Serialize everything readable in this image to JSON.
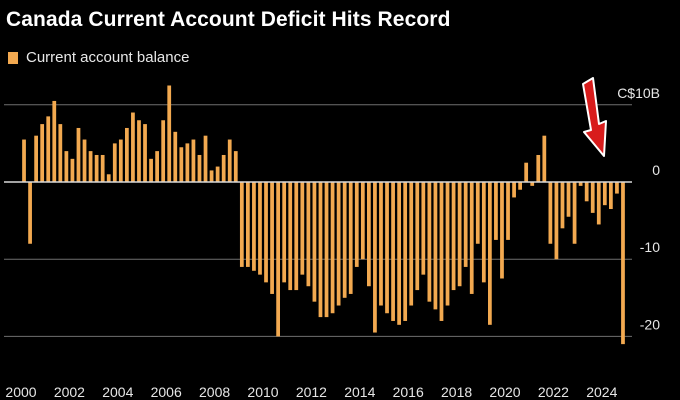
{
  "colors": {
    "accent": "#f2a950",
    "arrow": "#d81c1c",
    "background": "#000000"
  },
  "header": {
    "title": "Canada Current Account Deficit Hits Record"
  },
  "legend": {
    "label": "Current account balance"
  },
  "chart_data": {
    "type": "bar",
    "title": "Canada Current Account Deficit Hits Record",
    "xlabel": "",
    "ylabel": "",
    "ylim": [
      -22,
      12
    ],
    "y_ticks": [
      {
        "value": 10,
        "label": "C$10B"
      },
      {
        "value": 0,
        "label": "0"
      },
      {
        "value": -10,
        "label": "-10"
      },
      {
        "value": -20,
        "label": "-20"
      }
    ],
    "x_tick_labels": [
      "2000",
      "2002",
      "2004",
      "2006",
      "2008",
      "2010",
      "2012",
      "2014",
      "2016",
      "2018",
      "2020",
      "2022",
      "2024"
    ],
    "x_range": [
      2000,
      2025.5
    ],
    "grid": true,
    "legend_position": "top-left",
    "series": [
      {
        "name": "Current account balance",
        "start_year": 2000,
        "periods_per_year": 4,
        "values": [
          5.5,
          -8,
          6,
          7.5,
          8.5,
          10.5,
          7.5,
          4,
          3,
          7,
          5.5,
          4,
          3.5,
          3.5,
          1,
          5,
          5.5,
          7,
          9,
          8,
          7.5,
          3,
          4,
          8,
          12.5,
          6.5,
          4.5,
          5,
          5.5,
          3.5,
          6,
          1.5,
          2,
          3.5,
          5.5,
          4,
          -11,
          -11,
          -11.5,
          -12,
          -13,
          -14.5,
          -20,
          -13,
          -14,
          -14,
          -12,
          -13.5,
          -15.5,
          -17.5,
          -17.5,
          -17,
          -16,
          -15,
          -14.5,
          -11,
          -10,
          -13.5,
          -19.5,
          -16,
          -17,
          -18,
          -18.5,
          -18,
          -16,
          -14,
          -12,
          -15.5,
          -16.5,
          -18,
          -16,
          -14,
          -13.5,
          -11,
          -14.5,
          -8,
          -13,
          -18.5,
          -7.5,
          -12.5,
          -7.5,
          -2,
          -1,
          2.5,
          -0.5,
          3.5,
          6,
          -8,
          -10,
          -6,
          -4.5,
          -8,
          -0.5,
          -2.5,
          -4,
          -5.5,
          -3,
          -3.5,
          -1.5,
          -21
        ]
      }
    ],
    "annotations": [
      {
        "type": "arrow",
        "color": "#d81c1c",
        "points_to": "latest bar"
      }
    ]
  }
}
